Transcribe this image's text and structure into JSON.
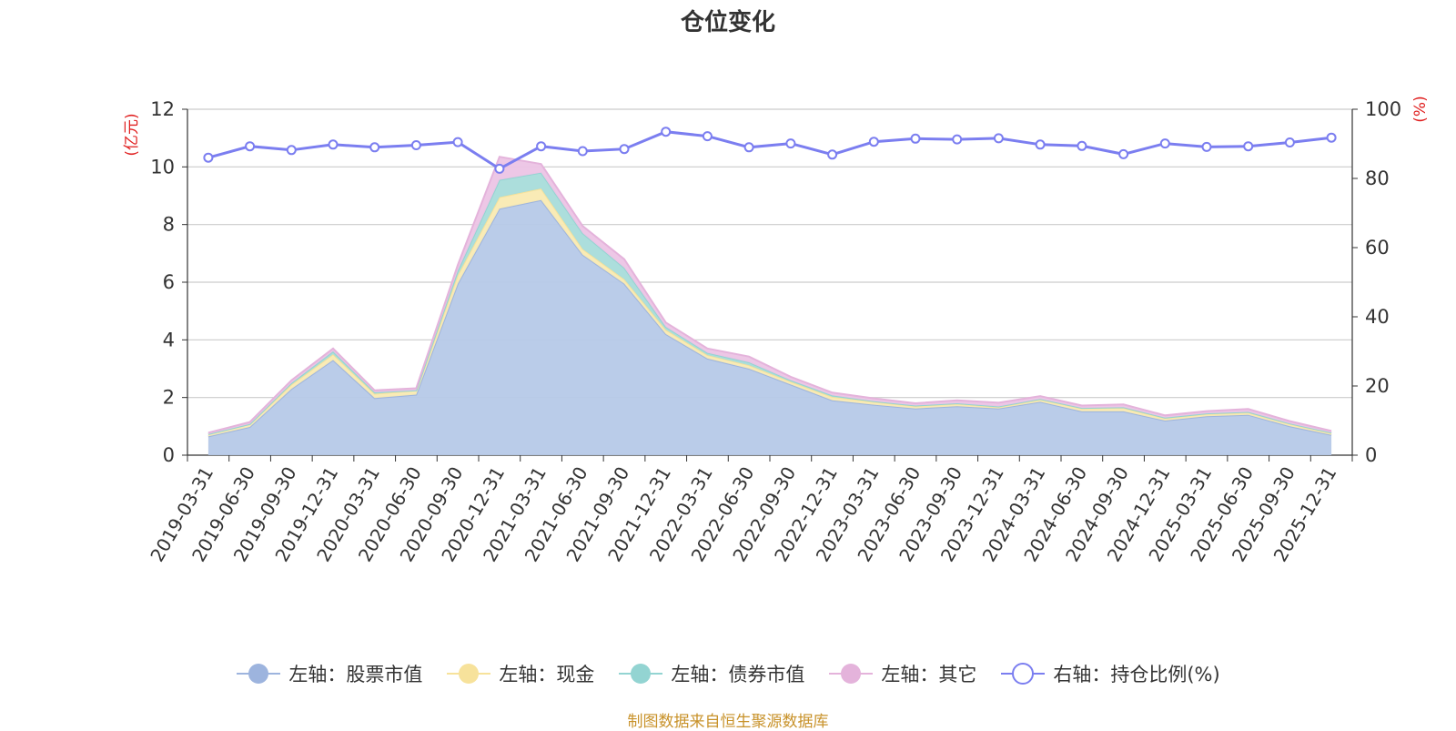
{
  "chart_data": {
    "type": "area",
    "title": "仓位变化",
    "left_unit": "(亿元)",
    "right_unit": "(%)",
    "ylim_left": [
      0,
      12
    ],
    "yticks_left": [
      0,
      2,
      4,
      6,
      8,
      10,
      12
    ],
    "ylim_right": [
      0,
      100
    ],
    "yticks_right": [
      0,
      20,
      40,
      60,
      80,
      100
    ],
    "grid": true,
    "legend_position": "bottom",
    "categories": [
      "2019-03-31",
      "2019-06-30",
      "2019-09-30",
      "2019-12-31",
      "2020-03-31",
      "2020-06-30",
      "2020-09-30",
      "2020-12-31",
      "2021-03-31",
      "2021-06-30",
      "2021-09-30",
      "2021-12-31",
      "2022-03-31",
      "2022-06-30",
      "2022-09-30",
      "2022-12-31",
      "2023-03-31",
      "2023-06-30",
      "2023-09-30",
      "2023-12-31",
      "2024-03-31",
      "2024-06-30",
      "2024-09-30",
      "2024-12-31",
      "2025-03-31",
      "2025-06-30",
      "2025-09-30",
      "2025-12-31"
    ],
    "series": [
      {
        "name": "左轴：股票市值",
        "axis": "left",
        "kind": "stacked-area",
        "color": "#9db4de",
        "fill": "#b6c9e8",
        "values": [
          0.65,
          0.98,
          2.3,
          3.3,
          1.98,
          2.1,
          5.95,
          8.55,
          8.85,
          6.95,
          5.95,
          4.2,
          3.35,
          3.0,
          2.45,
          1.9,
          1.75,
          1.62,
          1.7,
          1.62,
          1.85,
          1.52,
          1.52,
          1.2,
          1.35,
          1.4,
          1.0,
          0.7
        ]
      },
      {
        "name": "左轴：现金",
        "axis": "left",
        "kind": "stacked-area",
        "color": "#f7e29b",
        "fill": "#f9eab2",
        "values": [
          0.08,
          0.1,
          0.15,
          0.2,
          0.15,
          0.15,
          0.3,
          0.4,
          0.4,
          0.2,
          0.15,
          0.15,
          0.12,
          0.12,
          0.1,
          0.12,
          0.1,
          0.08,
          0.08,
          0.05,
          0.08,
          0.1,
          0.12,
          0.08,
          0.08,
          0.08,
          0.08,
          0.06
        ]
      },
      {
        "name": "左轴：债券市值",
        "axis": "left",
        "kind": "stacked-area",
        "color": "#93d4d2",
        "fill": "#a8dcda",
        "values": [
          0.0,
          0.0,
          0.05,
          0.1,
          0.05,
          0.0,
          0.15,
          0.6,
          0.55,
          0.55,
          0.4,
          0.1,
          0.08,
          0.1,
          0.05,
          0.05,
          0.02,
          0.02,
          0.02,
          0.02,
          0.02,
          0.02,
          0.02,
          0.02,
          0.02,
          0.02,
          0.02,
          0.02
        ]
      },
      {
        "name": "左轴：其它",
        "axis": "left",
        "kind": "stacked-area",
        "color": "#e4b3db",
        "fill": "#ecc4e5",
        "values": [
          0.05,
          0.07,
          0.1,
          0.1,
          0.07,
          0.07,
          0.2,
          0.8,
          0.3,
          0.25,
          0.3,
          0.15,
          0.15,
          0.2,
          0.12,
          0.1,
          0.1,
          0.08,
          0.1,
          0.13,
          0.1,
          0.08,
          0.1,
          0.08,
          0.08,
          0.1,
          0.08,
          0.06
        ]
      },
      {
        "name": "右轴：持仓比例(%)",
        "axis": "right",
        "kind": "line",
        "color": "#7b7ef0",
        "values": [
          86.0,
          89.3,
          88.2,
          89.8,
          89.0,
          89.6,
          90.5,
          82.8,
          89.3,
          87.9,
          88.5,
          93.5,
          92.2,
          89.0,
          90.1,
          86.9,
          90.6,
          91.5,
          91.3,
          91.6,
          89.8,
          89.4,
          87.0,
          90.1,
          89.1,
          89.3,
          90.4,
          91.8
        ]
      }
    ]
  },
  "source_text": "制图数据来自恒生聚源数据库"
}
